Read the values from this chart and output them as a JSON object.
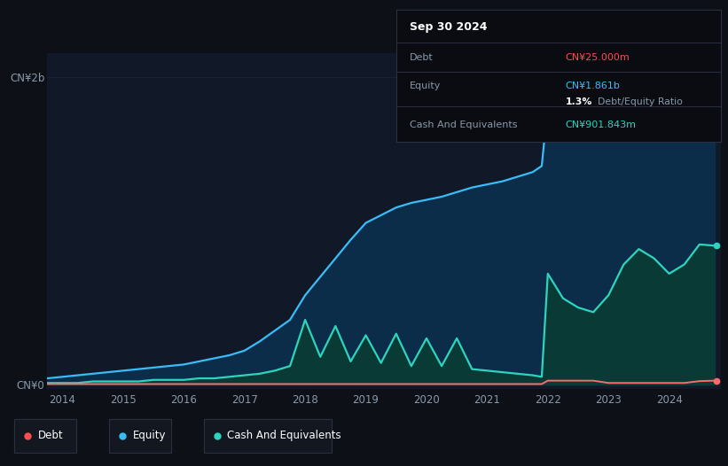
{
  "background_color": "#0d1117",
  "plot_bg_color": "#111827",
  "title_box": {
    "date": "Sep 30 2024",
    "debt_label": "Debt",
    "debt_value": "CN¥25.000m",
    "debt_color": "#ff4d4d",
    "equity_label": "Equity",
    "equity_value": "CN¥1.861b",
    "equity_color": "#38bdf8",
    "ratio_value": "1.3%",
    "ratio_text": "Debt/Equity Ratio",
    "cash_label": "Cash And Equivalents",
    "cash_value": "CN¥901.843m",
    "cash_color": "#2dd4bf"
  },
  "y_label_top": "CN¥2b",
  "y_label_bottom": "CN¥0",
  "x_ticks": [
    "2014",
    "2015",
    "2016",
    "2017",
    "2018",
    "2019",
    "2020",
    "2021",
    "2022",
    "2023",
    "2024"
  ],
  "grid_color": "#1e2533",
  "legend": [
    {
      "label": "Debt",
      "color": "#ff4d4d"
    },
    {
      "label": "Equity",
      "color": "#38bdf8"
    },
    {
      "label": "Cash And Equivalents",
      "color": "#2dd4bf"
    }
  ],
  "equity_color": "#38bdf8",
  "equity_fill": "#0c2d4a",
  "debt_color": "#ff6b6b",
  "cash_color": "#2dd4bf",
  "cash_fill": "#0a3a35",
  "t": [
    2013.75,
    2014.0,
    2014.25,
    2014.5,
    2014.75,
    2015.0,
    2015.25,
    2015.5,
    2015.75,
    2016.0,
    2016.25,
    2016.5,
    2016.75,
    2017.0,
    2017.25,
    2017.5,
    2017.75,
    2018.0,
    2018.25,
    2018.5,
    2018.75,
    2019.0,
    2019.25,
    2019.5,
    2019.75,
    2020.0,
    2020.25,
    2020.5,
    2020.75,
    2021.0,
    2021.25,
    2021.5,
    2021.75,
    2021.9,
    2022.0,
    2022.25,
    2022.5,
    2022.75,
    2023.0,
    2023.25,
    2023.5,
    2023.75,
    2024.0,
    2024.25,
    2024.5,
    2024.75
  ],
  "equity": [
    0.04,
    0.05,
    0.06,
    0.07,
    0.08,
    0.09,
    0.1,
    0.11,
    0.12,
    0.13,
    0.15,
    0.17,
    0.19,
    0.22,
    0.28,
    0.35,
    0.42,
    0.58,
    0.7,
    0.82,
    0.94,
    1.05,
    1.1,
    1.15,
    1.18,
    1.2,
    1.22,
    1.25,
    1.28,
    1.3,
    1.32,
    1.35,
    1.38,
    1.42,
    1.82,
    1.88,
    1.9,
    1.91,
    1.92,
    1.93,
    1.92,
    1.91,
    1.9,
    1.89,
    1.875,
    1.861
  ],
  "debt": [
    0.003,
    0.003,
    0.003,
    0.003,
    0.003,
    0.003,
    0.003,
    0.003,
    0.003,
    0.003,
    0.003,
    0.003,
    0.003,
    0.003,
    0.003,
    0.003,
    0.003,
    0.003,
    0.003,
    0.003,
    0.003,
    0.003,
    0.003,
    0.003,
    0.003,
    0.003,
    0.003,
    0.003,
    0.003,
    0.003,
    0.003,
    0.003,
    0.003,
    0.003,
    0.025,
    0.025,
    0.025,
    0.025,
    0.01,
    0.01,
    0.01,
    0.01,
    0.01,
    0.01,
    0.022,
    0.025
  ],
  "cash": [
    0.01,
    0.01,
    0.01,
    0.02,
    0.02,
    0.02,
    0.02,
    0.03,
    0.03,
    0.03,
    0.04,
    0.04,
    0.05,
    0.06,
    0.07,
    0.09,
    0.12,
    0.42,
    0.18,
    0.38,
    0.15,
    0.32,
    0.14,
    0.33,
    0.12,
    0.3,
    0.12,
    0.3,
    0.1,
    0.09,
    0.08,
    0.07,
    0.06,
    0.05,
    0.72,
    0.56,
    0.5,
    0.47,
    0.58,
    0.78,
    0.88,
    0.82,
    0.72,
    0.78,
    0.91,
    0.902
  ]
}
